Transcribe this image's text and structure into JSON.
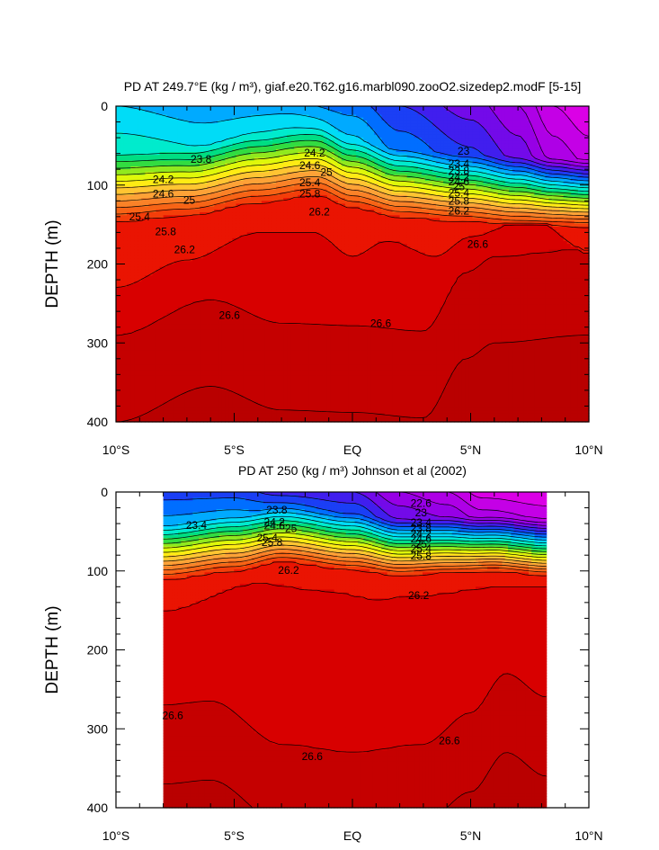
{
  "chart_data": [
    {
      "type": "heatmap",
      "subtype": "filled-contour",
      "title": "PD AT 249.7°E (kg / m³), giaf.e20.T62.g16.marbl090.zooO2.sizedep2.modF [5-15]",
      "ylabel": "DEPTH (m)",
      "xlabel": "",
      "xlim": [
        -10,
        10
      ],
      "ylim": [
        400,
        0
      ],
      "x_ticks": [
        -10,
        -5,
        0,
        5,
        10
      ],
      "x_tick_labels": [
        "10°S",
        "5°S",
        "EQ",
        "5°N",
        "10°N"
      ],
      "y_ticks": [
        0,
        100,
        200,
        300,
        400
      ],
      "y_tick_labels": [
        "0",
        "100",
        "200",
        "300",
        "400"
      ],
      "data_lon_range": [
        -10,
        10
      ],
      "contour_interval": 0.2,
      "levels_shown": [
        23.0,
        23.2,
        23.4,
        23.6,
        23.8,
        24.0,
        24.2,
        24.4,
        24.6,
        24.8,
        25.0,
        25.2,
        25.4,
        25.6,
        25.8,
        26.0,
        26.2,
        26.4,
        26.6,
        26.8
      ],
      "contour_labels": [
        {
          "text": "23.8",
          "lon": -6.4,
          "depth": 67
        },
        {
          "text": "24.2",
          "lon": -8.0,
          "depth": 93
        },
        {
          "text": "24.6",
          "lon": -8.0,
          "depth": 111
        },
        {
          "text": "25",
          "lon": -6.9,
          "depth": 119
        },
        {
          "text": "25.4",
          "lon": -9.0,
          "depth": 140
        },
        {
          "text": "25.8",
          "lon": -7.9,
          "depth": 159
        },
        {
          "text": "26.2",
          "lon": -7.1,
          "depth": 182
        },
        {
          "text": "24.2",
          "lon": -1.6,
          "depth": 59
        },
        {
          "text": "24.6",
          "lon": -1.8,
          "depth": 75
        },
        {
          "text": "25",
          "lon": -1.1,
          "depth": 84
        },
        {
          "text": "25.4",
          "lon": -1.8,
          "depth": 97
        },
        {
          "text": "25.8",
          "lon": -1.8,
          "depth": 111
        },
        {
          "text": "26.2",
          "lon": -1.4,
          "depth": 134
        },
        {
          "text": "23",
          "lon": 4.7,
          "depth": 57
        },
        {
          "text": "23.4",
          "lon": 4.5,
          "depth": 73
        },
        {
          "text": "23.8",
          "lon": 4.5,
          "depth": 82
        },
        {
          "text": "24.2",
          "lon": 4.5,
          "depth": 90
        },
        {
          "text": "24.6",
          "lon": 4.5,
          "depth": 96
        },
        {
          "text": "25",
          "lon": 4.5,
          "depth": 102
        },
        {
          "text": "25.4",
          "lon": 4.5,
          "depth": 110
        },
        {
          "text": "25.8",
          "lon": 4.5,
          "depth": 120
        },
        {
          "text": "26.2",
          "lon": 4.5,
          "depth": 133
        },
        {
          "text": "26.6",
          "lon": 5.3,
          "depth": 175
        },
        {
          "text": "26.6",
          "lon": -5.2,
          "depth": 265
        },
        {
          "text": "26.6",
          "lon": 1.2,
          "depth": 275
        }
      ]
    },
    {
      "type": "heatmap",
      "subtype": "filled-contour",
      "title": "PD AT 250 (kg / m³) Johnson et al (2002)",
      "ylabel": "DEPTH (m)",
      "xlabel": "",
      "xlim": [
        -10,
        10
      ],
      "ylim": [
        400,
        0
      ],
      "x_ticks": [
        -10,
        -5,
        0,
        5,
        10
      ],
      "x_tick_labels": [
        "10°S",
        "5°S",
        "EQ",
        "5°N",
        "10°N"
      ],
      "y_ticks": [
        0,
        100,
        200,
        300,
        400
      ],
      "y_tick_labels": [
        "0",
        "100",
        "200",
        "300",
        "400"
      ],
      "data_lon_range": [
        -8,
        8.2
      ],
      "contour_interval": 0.2,
      "levels_shown": [
        22.6,
        23.0,
        23.4,
        23.8,
        24.2,
        24.6,
        25.0,
        25.4,
        25.8,
        26.2,
        26.6
      ],
      "contour_labels": [
        {
          "text": "23.4",
          "lon": -6.6,
          "depth": 42
        },
        {
          "text": "23.8",
          "lon": -3.2,
          "depth": 23
        },
        {
          "text": "24.2",
          "lon": -3.3,
          "depth": 38
        },
        {
          "text": "24.6",
          "lon": -3.3,
          "depth": 43
        },
        {
          "text": "25",
          "lon": -2.6,
          "depth": 46
        },
        {
          "text": "25.4",
          "lon": -3.6,
          "depth": 58
        },
        {
          "text": "25.8",
          "lon": -3.4,
          "depth": 64
        },
        {
          "text": "26.2",
          "lon": -2.7,
          "depth": 99
        },
        {
          "text": "22.6",
          "lon": 2.9,
          "depth": 14
        },
        {
          "text": "23",
          "lon": 2.9,
          "depth": 26
        },
        {
          "text": "23.4",
          "lon": 2.9,
          "depth": 39
        },
        {
          "text": "23.8",
          "lon": 2.9,
          "depth": 46
        },
        {
          "text": "24.2",
          "lon": 2.9,
          "depth": 53
        },
        {
          "text": "24.6",
          "lon": 2.9,
          "depth": 59
        },
        {
          "text": "25",
          "lon": 2.9,
          "depth": 66
        },
        {
          "text": "25.4",
          "lon": 2.9,
          "depth": 72
        },
        {
          "text": "25.8",
          "lon": 2.9,
          "depth": 81
        },
        {
          "text": "26.2",
          "lon": 2.8,
          "depth": 131
        },
        {
          "text": "26.6",
          "lon": -7.6,
          "depth": 283
        },
        {
          "text": "26.6",
          "lon": -1.7,
          "depth": 335
        },
        {
          "text": "26.6",
          "lon": 4.1,
          "depth": 315
        }
      ]
    }
  ]
}
